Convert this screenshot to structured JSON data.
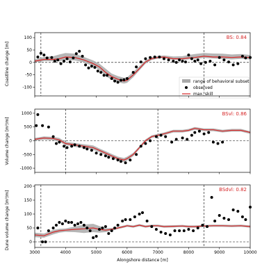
{
  "colors": {
    "band": "#a9a9a9",
    "model": "#d62728",
    "obs": "#000000",
    "skill": "#d62728"
  },
  "legend": {
    "band_label": "range of behavioral subset",
    "obs_label": "observed",
    "model_label": "max. skill"
  },
  "x_axis": {
    "label": "Alongshore distance [m]",
    "ticks": [
      "3000",
      "4000",
      "5000",
      "6000",
      "7000",
      "8000",
      "9000",
      "10000"
    ]
  },
  "chart_data": [
    {
      "type": "line",
      "ylabel": "Coastline change [m]",
      "skill_label": "BS: 0.84",
      "xlim": [
        3000,
        10000
      ],
      "ylim": [
        -135,
        120
      ],
      "yticks": [
        "100",
        "50",
        "0",
        "-50",
        "-100"
      ],
      "vlines": [
        3200,
        8500
      ],
      "legend_position": "bottom-right",
      "model": {
        "x": [
          3000,
          3300,
          3600,
          3800,
          4000,
          4300,
          4600,
          4900,
          5100,
          5300,
          5500,
          5700,
          5900,
          6000,
          6200,
          6400,
          6600,
          6800,
          7000,
          7200,
          7500,
          7800,
          8000,
          8200,
          8500,
          8800,
          9100,
          9400,
          9700,
          10000
        ],
        "y": [
          5,
          12,
          12,
          15,
          22,
          20,
          10,
          -5,
          -18,
          -40,
          -57,
          -68,
          -75,
          -72,
          -50,
          -25,
          2,
          15,
          20,
          22,
          15,
          15,
          18,
          20,
          25,
          22,
          22,
          20,
          22,
          20
        ]
      },
      "band": {
        "x": [
          3000,
          3300,
          3600,
          3800,
          4000,
          4300,
          4600,
          4900,
          5100,
          5300,
          5500,
          5700,
          5900,
          6000,
          6200,
          6400,
          6600,
          6800,
          7000,
          7200,
          7500,
          7800,
          8000,
          8200,
          8500,
          8800,
          9100,
          9400,
          9700,
          10000
        ],
        "lo": [
          0,
          5,
          5,
          5,
          10,
          8,
          0,
          -15,
          -30,
          -55,
          -70,
          -80,
          -85,
          -82,
          -60,
          -32,
          -5,
          10,
          15,
          17,
          10,
          10,
          12,
          14,
          18,
          16,
          14,
          12,
          14,
          12
        ],
        "hi": [
          12,
          22,
          25,
          32,
          38,
          35,
          22,
          8,
          -5,
          -25,
          -45,
          -55,
          -62,
          -60,
          -38,
          -15,
          8,
          22,
          26,
          28,
          24,
          25,
          30,
          34,
          38,
          36,
          35,
          32,
          34,
          30
        ]
      },
      "observed": {
        "x": [
          3100,
          3200,
          3300,
          3400,
          3550,
          3650,
          3750,
          3850,
          3950,
          4050,
          4150,
          4250,
          4350,
          4450,
          4550,
          4650,
          4750,
          4850,
          4950,
          5050,
          5150,
          5250,
          5350,
          5500,
          5600,
          5700,
          5800,
          5900,
          6000,
          6200,
          6300,
          6450,
          6600,
          6750,
          6900,
          7050,
          7200,
          7350,
          7500,
          7600,
          7700,
          7800,
          7900,
          8000,
          8100,
          8200,
          8300,
          8400,
          8550,
          8700,
          8850,
          9000,
          9150,
          9300,
          9450,
          9600,
          9750,
          9850,
          10000
        ],
        "y": [
          22,
          37,
          30,
          18,
          20,
          5,
          10,
          -5,
          5,
          15,
          2,
          18,
          35,
          45,
          25,
          -10,
          -22,
          -15,
          -20,
          -35,
          -40,
          -52,
          -52,
          -65,
          -75,
          -80,
          -72,
          -70,
          -65,
          -40,
          -18,
          2,
          15,
          20,
          22,
          22,
          15,
          10,
          5,
          0,
          10,
          5,
          2,
          30,
          15,
          5,
          10,
          -5,
          0,
          5,
          -10,
          20,
          10,
          2,
          -10,
          -5,
          25,
          18,
          20
        ]
      }
    },
    {
      "type": "line",
      "ylabel": "Volume change [m³/m]",
      "skill_label": "BSvl: 0.86",
      "xlim": [
        3000,
        10000
      ],
      "ylim": [
        -1150,
        1150
      ],
      "yticks": [
        "1000",
        "500",
        "0",
        "-500",
        "-1000"
      ],
      "vlines": [
        4000,
        7000
      ],
      "model": {
        "x": [
          3000,
          3300,
          3600,
          3800,
          4000,
          4300,
          4600,
          4900,
          5100,
          5300,
          5500,
          5700,
          5900,
          6000,
          6200,
          6400,
          6600,
          6800,
          7000,
          7200,
          7500,
          7800,
          8000,
          8200,
          8500,
          8800,
          9100,
          9400,
          9700,
          10000
        ],
        "y": [
          50,
          100,
          80,
          30,
          -100,
          -150,
          -200,
          -250,
          -350,
          -450,
          -550,
          -650,
          -700,
          -650,
          -500,
          -250,
          0,
          150,
          200,
          250,
          350,
          350,
          380,
          450,
          400,
          400,
          350,
          380,
          380,
          300
        ]
      },
      "band": {
        "x": [
          3000,
          3300,
          3600,
          3800,
          4000,
          4300,
          4600,
          4900,
          5100,
          5300,
          5500,
          5700,
          5900,
          6000,
          6200,
          6400,
          6600,
          6800,
          7000,
          7200,
          7500,
          7800,
          8000,
          8200,
          8500,
          8800,
          9100,
          9400,
          9700,
          10000
        ],
        "lo": [
          0,
          40,
          20,
          -40,
          -160,
          -220,
          -270,
          -330,
          -420,
          -520,
          -620,
          -720,
          -780,
          -720,
          -560,
          -300,
          -50,
          100,
          150,
          200,
          300,
          300,
          330,
          400,
          350,
          350,
          300,
          330,
          330,
          250
        ],
        "hi": [
          100,
          160,
          140,
          100,
          -40,
          -80,
          -130,
          -170,
          -280,
          -380,
          -480,
          -580,
          -630,
          -580,
          -440,
          -200,
          50,
          200,
          250,
          300,
          400,
          400,
          430,
          500,
          450,
          450,
          400,
          430,
          430,
          350
        ]
      },
      "observed": {
        "x": [
          3050,
          3100,
          3250,
          3450,
          3600,
          3700,
          3800,
          3950,
          4050,
          4200,
          4300,
          4450,
          4600,
          4700,
          4850,
          5000,
          5150,
          5300,
          5400,
          5550,
          5700,
          5800,
          5950,
          6100,
          6300,
          6450,
          6600,
          6750,
          6950,
          7100,
          7250,
          7450,
          7600,
          7800,
          7950,
          8100,
          8200,
          8350,
          8500,
          8650,
          8800,
          8950,
          9100
        ],
        "y": [
          550,
          950,
          550,
          500,
          150,
          -100,
          -50,
          -200,
          -250,
          -200,
          -150,
          -200,
          -250,
          -300,
          -350,
          -450,
          -500,
          -550,
          -600,
          -650,
          -700,
          -750,
          -800,
          -700,
          -500,
          -200,
          -100,
          0,
          150,
          200,
          150,
          -50,
          50,
          100,
          50,
          200,
          300,
          350,
          250,
          300,
          -50,
          -100,
          -50
        ]
      }
    },
    {
      "type": "line",
      "ylabel": "Dune volume change [m³/m]",
      "skill_label": "BSdvl: 0.82",
      "xlim": [
        3000,
        10000
      ],
      "ylim": [
        -20,
        205
      ],
      "yticks": [
        "200",
        "150",
        "100",
        "50",
        "0"
      ],
      "vlines": [
        3200,
        8500
      ],
      "model": {
        "x": [
          3000,
          3300,
          3600,
          3800,
          4000,
          4300,
          4600,
          4900,
          5100,
          5300,
          5500,
          5700,
          5900,
          6000,
          6200,
          6400,
          6600,
          6800,
          7000,
          7200,
          7500,
          7800,
          8000,
          8200,
          8500,
          8800,
          9100,
          9400,
          9700,
          10000
        ],
        "y": [
          25,
          22,
          35,
          40,
          42,
          45,
          47,
          50,
          45,
          42,
          45,
          50,
          55,
          58,
          55,
          60,
          55,
          58,
          58,
          55,
          56,
          57,
          55,
          55,
          57,
          58,
          58,
          57,
          58,
          55
        ]
      },
      "band": {
        "x": [
          3000,
          3300,
          3600,
          3800,
          4000,
          4300,
          4600,
          4900,
          5100,
          5300,
          5500,
          5700,
          5900,
          6000,
          6200,
          6400,
          6600,
          6800,
          7000,
          7200,
          7500,
          7800,
          8000,
          8200,
          8500,
          8800,
          9100,
          9400,
          9700,
          10000
        ],
        "lo": [
          17,
          15,
          27,
          33,
          36,
          35,
          32,
          35,
          33,
          35,
          40,
          46,
          51,
          54,
          51,
          56,
          51,
          54,
          54,
          51,
          52,
          53,
          51,
          51,
          53,
          54,
          54,
          53,
          54,
          51
        ],
        "hi": [
          33,
          30,
          43,
          47,
          48,
          55,
          62,
          65,
          57,
          49,
          50,
          54,
          59,
          62,
          59,
          64,
          59,
          62,
          62,
          59,
          60,
          61,
          59,
          59,
          61,
          62,
          62,
          61,
          62,
          59
        ]
      },
      "observed": {
        "x": [
          3100,
          3250,
          3350,
          3450,
          3600,
          3700,
          3800,
          3900,
          4000,
          4100,
          4200,
          4300,
          4400,
          4500,
          4600,
          4700,
          4800,
          4900,
          5000,
          5100,
          5200,
          5300,
          5400,
          5500,
          5600,
          5700,
          5850,
          5950,
          6100,
          6250,
          6400,
          6500,
          6650,
          6800,
          6950,
          7100,
          7250,
          7400,
          7550,
          7700,
          7850,
          8000,
          8150,
          8300,
          8450,
          8600,
          8750,
          8850,
          9000,
          9150,
          9300,
          9450,
          9600,
          9750,
          9850,
          10000
        ],
        "y": [
          50,
          0,
          0,
          40,
          50,
          60,
          70,
          65,
          75,
          70,
          70,
          60,
          65,
          70,
          60,
          50,
          40,
          15,
          20,
          45,
          50,
          55,
          30,
          40,
          50,
          60,
          75,
          80,
          80,
          90,
          100,
          105,
          75,
          55,
          45,
          35,
          30,
          25,
          40,
          40,
          40,
          45,
          40,
          50,
          60,
          55,
          160,
          75,
          95,
          85,
          80,
          115,
          110,
          90,
          80,
          125
        ]
      }
    }
  ]
}
